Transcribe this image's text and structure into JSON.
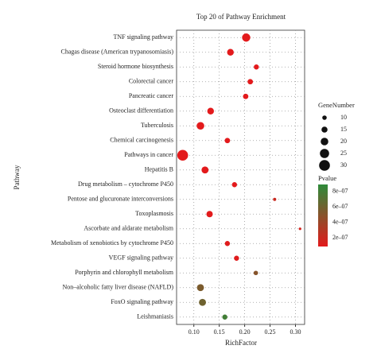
{
  "chart_data": {
    "type": "bubble",
    "title": "Top 20 of Pathway Enrichment",
    "x_label": "RichFactor",
    "y_label": "Pathway",
    "categories": [
      "TNF signaling pathway",
      "Chagas disease (American trypanosomiasis)",
      "Steroid hormone biosynthesis",
      "Colorectal cancer",
      "Pancreatic cancer",
      "Osteoclast differentiation",
      "Tuberculosis",
      "Chemical carcinogenesis",
      "Pathways in cancer",
      "Hepatitis B",
      "Drug metabolism – cytochrome P450",
      "Pentose and glucuronate interconversions",
      "Toxoplasmosis",
      "Ascorbate and aldarate metabolism",
      "Metabolism of xenobiotics by cytochrome P450",
      "VEGF signaling pathway",
      "Porphyrin and chlorophyll metabolism",
      "Non–alcoholic fatty liver disease (NAFLD)",
      "FoxO signaling pathway",
      "Leishmaniasis"
    ],
    "values": [
      0.203,
      0.172,
      0.223,
      0.211,
      0.202,
      0.133,
      0.113,
      0.166,
      0.078,
      0.122,
      0.18,
      0.259,
      0.131,
      0.309,
      0.166,
      0.184,
      0.222,
      0.113,
      0.117,
      0.161
    ],
    "sizes": [
      22,
      17,
      12,
      13,
      13,
      17,
      20,
      13,
      30,
      18,
      12,
      6,
      16,
      4,
      12,
      12,
      10,
      18,
      18,
      12
    ],
    "pvalues": [
      1e-08,
      2e-08,
      3e-08,
      3e-08,
      4e-08,
      5e-08,
      5e-08,
      8e-08,
      1e-08,
      6e-08,
      8e-08,
      2e-07,
      9e-08,
      1.5e-07,
      1e-07,
      1e-07,
      5e-07,
      5.5e-07,
      6e-07,
      8e-07
    ],
    "xlim": [
      0.066,
      0.318
    ],
    "xticks": [
      {
        "value": 0.1,
        "label": "0.10"
      },
      {
        "value": 0.15,
        "label": "0.15"
      },
      {
        "value": 0.2,
        "label": "0.20"
      },
      {
        "value": 0.25,
        "label": "0.25"
      },
      {
        "value": 0.3,
        "label": "0.30"
      }
    ],
    "size_legend_title": "GeneNumber",
    "size_legend": [
      10,
      15,
      20,
      25,
      30
    ],
    "color_legend_title": "Pvalue",
    "color_lim": [
      8.6e-08,
      8.9e-07
    ],
    "color_ticks": [
      {
        "value": 8e-07,
        "label": "8e–07"
      },
      {
        "value": 6e-07,
        "label": "6e–07"
      },
      {
        "value": 4e-07,
        "label": "4e–07"
      },
      {
        "value": 2e-07,
        "label": "2e–07"
      }
    ],
    "color_low": "#e31a1c",
    "color_high": "#2e8b3a",
    "grid": true
  }
}
